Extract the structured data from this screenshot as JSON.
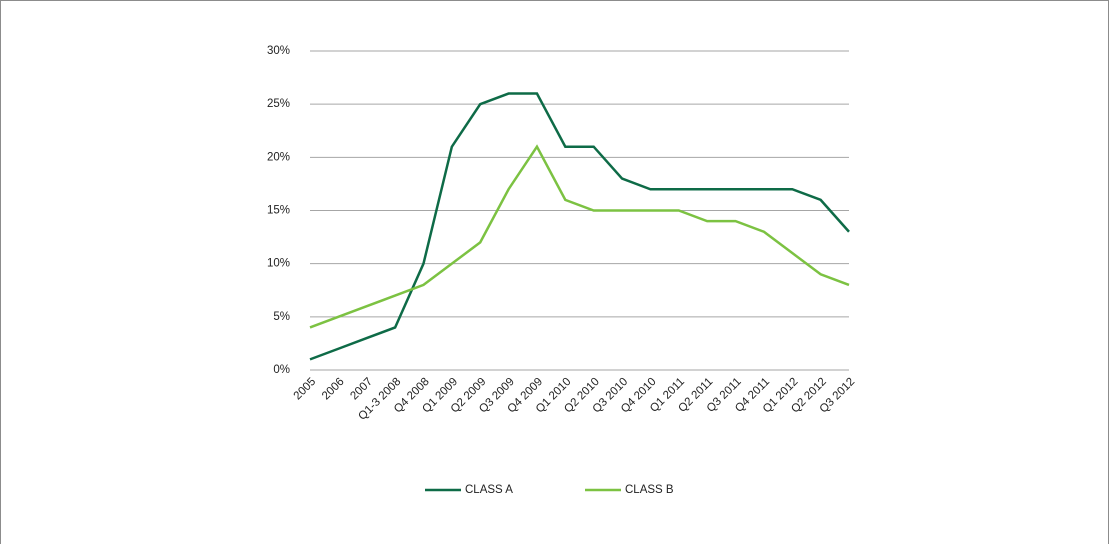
{
  "chart_data": {
    "type": "line",
    "categories": [
      "2005",
      "2006",
      "2007",
      "Q1-3 2008",
      "Q4 2008",
      "Q1 2009",
      "Q2 2009",
      "Q3 2009",
      "Q4 2009",
      "Q1 2010",
      "Q2 2010",
      "Q3 2010",
      "Q4 2010",
      "Q1 2011",
      "Q2 2011",
      "Q3 2011",
      "Q4 2011",
      "Q1 2012",
      "Q2 2012",
      "Q3 2012"
    ],
    "series": [
      {
        "name": "CLASS A",
        "color": "#0e6b47",
        "values": [
          1,
          2,
          3,
          4,
          10,
          21,
          25,
          26,
          26,
          21,
          21,
          18,
          17,
          17,
          17,
          17,
          17,
          17,
          16,
          13
        ]
      },
      {
        "name": "CLASS B",
        "color": "#7cc242",
        "values": [
          4,
          5,
          6,
          7,
          8,
          10,
          12,
          17,
          21,
          16,
          15,
          15,
          15,
          15,
          14,
          14,
          13,
          11,
          9,
          8
        ]
      }
    ],
    "ylim": [
      0,
      30
    ],
    "yticks": [
      {
        "value": 0,
        "label": "0%"
      },
      {
        "value": 5,
        "label": "5%"
      },
      {
        "value": 10,
        "label": "10%"
      },
      {
        "value": 15,
        "label": "15%"
      },
      {
        "value": 20,
        "label": "20%"
      },
      {
        "value": 25,
        "label": "25%"
      },
      {
        "value": 30,
        "label": "30%"
      }
    ],
    "grid": true,
    "legend": "bottom"
  }
}
